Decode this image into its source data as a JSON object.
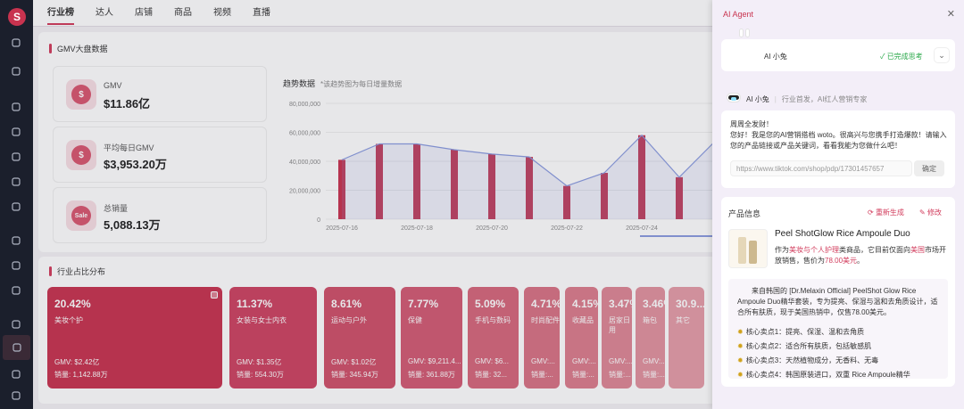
{
  "brand": {
    "logo_letter": "S"
  },
  "sidebar": {
    "icons": [
      "download-icon",
      "chart-icon",
      "user-icon",
      "user-icon",
      "user-icon",
      "calendar-icon",
      "doc-icon",
      "box-icon",
      "wallet-icon",
      "user-group-icon",
      "diamond-icon",
      "home-icon",
      "user-icon",
      "user-icon"
    ],
    "active_index": 11
  },
  "topnav": {
    "tabs": [
      "行业榜",
      "达人",
      "店铺",
      "商品",
      "视频",
      "直播"
    ],
    "active": 0
  },
  "gmv_section": {
    "title": "GMV大盘数据"
  },
  "stats": [
    {
      "icon": "dollar-icon",
      "icon_text": "$",
      "label": "GMV",
      "value": "$11.86亿"
    },
    {
      "icon": "dollar-icon",
      "icon_text": "$",
      "label": "平均每日GMV",
      "value": "$3,953.20万"
    },
    {
      "icon": "sale-icon",
      "icon_text": "Sale",
      "label": "总销量",
      "value": "5,088.13万"
    }
  ],
  "trend": {
    "title": "趋势数据",
    "note": "*该趋势图为每日增量数据"
  },
  "chart_data": {
    "type": "bar",
    "title": "趋势数据",
    "ylim": [
      0,
      80000000
    ],
    "yticks": [
      "0",
      "20,000,000",
      "40,000,000",
      "60,000,000",
      "80,000,000"
    ],
    "xticks": [
      "2025-07-16",
      "2025-07-18",
      "2025-07-20",
      "2025-07-22",
      "2025-07-24"
    ],
    "bars": [
      41000000,
      52000000,
      52000000,
      48000000,
      45000000,
      43000000,
      23000000,
      32000000,
      58000000,
      29000000,
      55000000
    ],
    "line": [
      41000000,
      52000000,
      52000000,
      48000000,
      45000000,
      43000000,
      23000000,
      32000000,
      58000000,
      29000000,
      55000000
    ],
    "bar_color": "#c8334f",
    "line_color": "#8a9be0"
  },
  "industry_section": {
    "title": "行业占比分布"
  },
  "tiles": [
    {
      "pct": "20.42%",
      "name": "美妆个护",
      "gmv": "GMV: $2.42亿",
      "sales": "销量: 1,142.88万",
      "color": "#c8334f"
    },
    {
      "pct": "11.37%",
      "name": "女装与女士内衣",
      "gmv": "GMV: $1.35亿",
      "sales": "销量: 554.30万",
      "color": "#cd4361"
    },
    {
      "pct": "8.61%",
      "name": "运动与户外",
      "gmv": "GMV: $1.02亿",
      "sales": "销量: 345.94万",
      "color": "#d05069"
    },
    {
      "pct": "7.77%",
      "name": "保健",
      "gmv": "GMV: $9,211.4...",
      "sales": "销量: 361.88万",
      "color": "#d35b73"
    },
    {
      "pct": "5.09%",
      "name": "手机与数码",
      "gmv": "GMV: $6...",
      "sales": "销量: 32...",
      "color": "#d6677c"
    },
    {
      "pct": "4.71%",
      "name": "时尚配件",
      "gmv": "GMV:...",
      "sales": "销量:...",
      "color": "#d97284"
    },
    {
      "pct": "4.15%",
      "name": "收藏品",
      "gmv": "GMV:...",
      "sales": "销量:...",
      "color": "#dc7d8d"
    },
    {
      "pct": "3.47%",
      "name": "居家日用",
      "gmv": "GMV:...",
      "sales": "销量:...",
      "color": "#df8796"
    },
    {
      "pct": "3.46%",
      "name": "箱包",
      "gmv": "GMV:...",
      "sales": "销量:...",
      "color": "#e2929f"
    },
    {
      "pct": "30.9...",
      "name": "其它",
      "gmv": "",
      "sales": "",
      "color": "#e59ca8"
    }
  ],
  "agent": {
    "header": "AI Agent",
    "name": "AI 小兔",
    "status": "已完成思考",
    "role": "行业首发，AI红人营销专家",
    "greet_line1": "周周全发财！",
    "greet_line2": "您好！我是您的AI营销搭档 woto。很高兴与您携手打造爆款！请输入您的产品链接或产品关键词，看看我能为您做什么吧！",
    "url_placeholder": "https://www.tiktok.com/shop/pdp/17301457657",
    "confirm": "确定",
    "product_title": "产品信息",
    "regenerate": "重新生成",
    "edit": "修改",
    "product_name": "Peel ShotGlow Rice Ampoule Duo",
    "product_desc_1": "作为",
    "product_desc_cat": "美妆与个人护理",
    "product_desc_2": "类商品，它目前仅面向",
    "product_desc_region": "美国",
    "product_desc_3": "市场开放销售，售价为",
    "product_desc_price": "78.00美元",
    "product_desc_4": "。",
    "desc_text": "来自韩国的 [Dr.Melaxin Official] PeelShot Glow Rice Ampoule Duo精华套装，专为提亮、保湿与温和去角质设计，适合所有肤质，现于美国热销中，仅售78.00美元。",
    "points": [
      "核心卖点1：提亮、保湿、温和去角质",
      "核心卖点2：适合所有肤质，包括敏感肌",
      "核心卖点3：天然植物成分，无香料、无毒",
      "核心卖点4：韩国原装进口，双重 Rice Ampoule精华"
    ]
  }
}
